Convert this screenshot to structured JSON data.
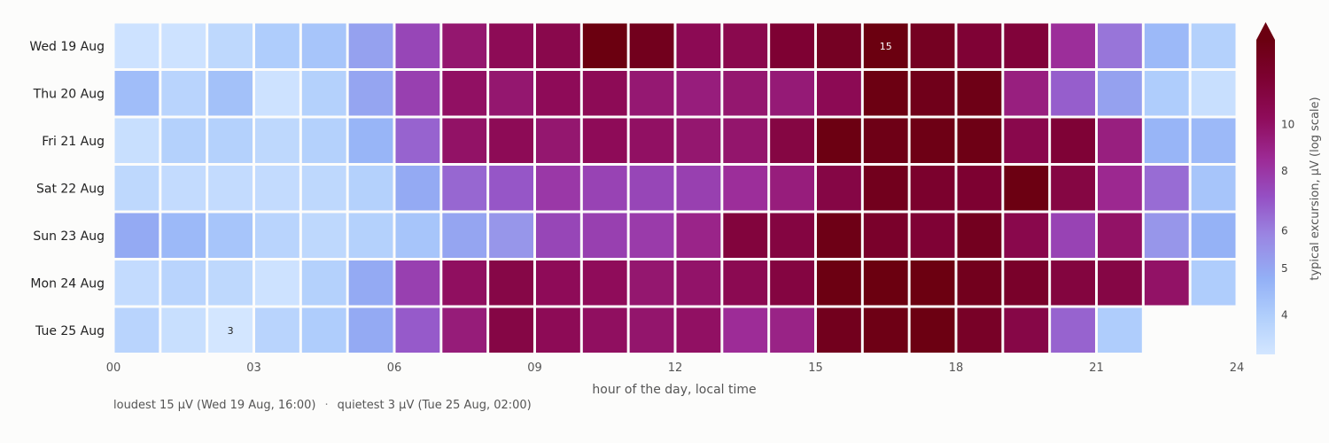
{
  "chart_data": {
    "type": "heatmap",
    "rows": [
      "Wed 19 Aug",
      "Thu 20 Aug",
      "Fri 21 Aug",
      "Sat 22 Aug",
      "Sun 23 Aug",
      "Mon 24 Aug",
      "Tue 25 Aug"
    ],
    "x_ticks": [
      "00",
      "03",
      "06",
      "09",
      "12",
      "15",
      "18",
      "21",
      "24"
    ],
    "xlabel": "hour of the day, local time",
    "colorbar_label": "typical excursion, µV  (log scale)",
    "colorbar_ticks": [
      "4",
      "5",
      "6",
      "8",
      "10"
    ],
    "colorbar_tick_values": [
      4,
      5,
      6,
      8,
      10
    ],
    "colorbar_range": [
      3.3,
      15
    ],
    "colorbar_extend": "max",
    "scale": "log",
    "values": [
      [
        3.4,
        3.4,
        3.7,
        4.0,
        4.2,
        5.1,
        7.4,
        9.6,
        10.5,
        11.0,
        15.0,
        14.0,
        10.6,
        10.9,
        12.4,
        13.5,
        15.0,
        13.6,
        12.3,
        12.0,
        8.3,
        6.2,
        4.5,
        3.9
      ],
      [
        4.4,
        3.8,
        4.3,
        3.4,
        3.9,
        5.0,
        7.6,
        10.0,
        9.6,
        10.4,
        10.5,
        9.5,
        9.2,
        9.6,
        9.4,
        10.6,
        14.8,
        14.2,
        14.5,
        9.1,
        6.7,
        5.1,
        4.0,
        3.5
      ],
      [
        3.5,
        3.9,
        3.9,
        3.7,
        3.9,
        4.6,
        6.6,
        9.9,
        10.5,
        9.6,
        10.4,
        10.0,
        9.6,
        9.7,
        11.5,
        14.8,
        14.5,
        14.6,
        14.6,
        11.0,
        12.2,
        9.1,
        4.6,
        4.5
      ],
      [
        3.7,
        3.6,
        3.6,
        3.6,
        3.7,
        3.9,
        4.9,
        6.5,
        6.9,
        7.9,
        7.5,
        7.4,
        7.6,
        8.3,
        9.2,
        11.4,
        14.0,
        12.8,
        12.5,
        14.8,
        11.5,
        8.6,
        6.4,
        4.2
      ],
      [
        4.9,
        4.5,
        4.2,
        3.8,
        3.7,
        3.9,
        4.2,
        5.0,
        5.4,
        7.4,
        7.6,
        7.8,
        8.8,
        11.8,
        11.6,
        14.5,
        12.9,
        12.3,
        13.8,
        11.0,
        7.5,
        9.9,
        5.4,
        4.7
      ],
      [
        3.6,
        3.8,
        3.7,
        3.4,
        3.9,
        4.9,
        7.6,
        10.1,
        11.3,
        10.4,
        10.3,
        9.6,
        9.8,
        10.7,
        11.6,
        14.8,
        15.0,
        14.9,
        14.0,
        13.0,
        11.7,
        11.4,
        9.9,
        4.0
      ],
      [
        3.8,
        3.5,
        3.0,
        3.8,
        4.0,
        4.9,
        6.8,
        9.3,
        11.4,
        10.5,
        10.1,
        9.7,
        10.0,
        8.4,
        8.9,
        14.0,
        14.6,
        14.8,
        13.2,
        11.3,
        6.6,
        4.0,
        null,
        null
      ]
    ],
    "annotations": [
      {
        "row": 0,
        "col": 16,
        "text": "15"
      },
      {
        "row": 6,
        "col": 2,
        "text": "3"
      }
    ]
  },
  "summary": {
    "loudest": "loudest 15 µV (Wed 19 Aug, 16:00)",
    "separator": "·",
    "quietest": "quietest 3 µV (Tue 25 Aug, 02:00)"
  }
}
